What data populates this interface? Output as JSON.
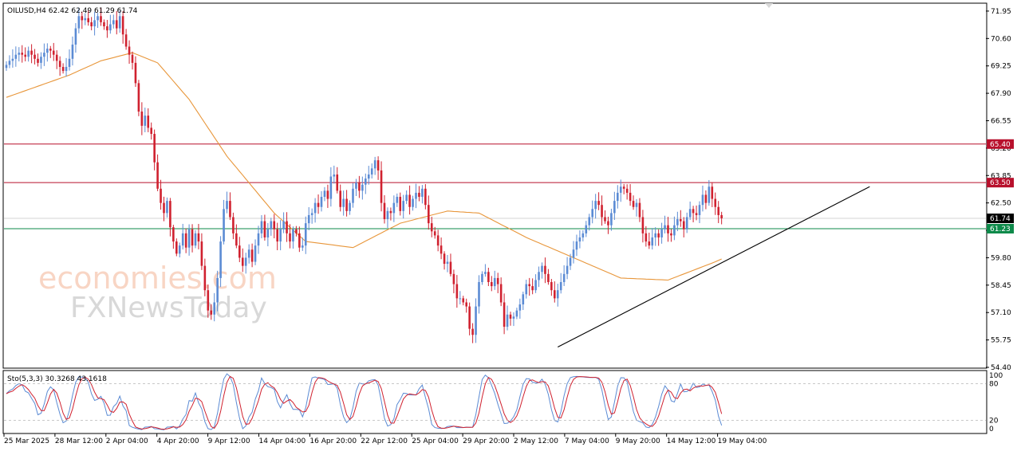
{
  "chart_data": {
    "type": "candlestick",
    "symbol_line": "OILUSD,H4 62.42 62.49 61.29 61.74",
    "price_axis": {
      "ticks": [
        "71.95",
        "70.60",
        "69.25",
        "67.90",
        "66.55",
        "65.20",
        "63.85",
        "62.50",
        "61.15",
        "59.80",
        "58.45",
        "57.10",
        "55.75",
        "54.40"
      ],
      "range": [
        54.4,
        72.3
      ]
    },
    "horizontal_levels": [
      {
        "value": 65.4,
        "label": "65.40",
        "color": "#b8102c"
      },
      {
        "value": 63.5,
        "label": "63.50",
        "color": "#b8102c"
      },
      {
        "value": 61.23,
        "label": "61.23",
        "color": "#0d8a4a"
      },
      {
        "value": 61.74,
        "label": "61.74",
        "color": "#000000"
      }
    ],
    "trendline": {
      "from": {
        "bar": 175,
        "price": 55.4
      },
      "to": {
        "bar": 274,
        "price": 63.3
      }
    },
    "time_axis": {
      "labels": [
        "25 Mar 2025",
        "28 Mar 12:00",
        "2 Apr 04:00",
        "4 Apr 20:00",
        "9 Apr 12:00",
        "14 Apr 04:00",
        "16 Apr 20:00",
        "22 Apr 12:00",
        "25 Apr 04:00",
        "29 Apr 20:00",
        "2 May 12:00",
        "7 May 04:00",
        "9 May 20:00",
        "14 May 12:00",
        "19 May 04:00"
      ]
    },
    "ma_waypoints": [
      [
        0,
        67.7
      ],
      [
        20,
        68.8
      ],
      [
        30,
        69.5
      ],
      [
        40,
        69.9
      ],
      [
        48,
        69.4
      ],
      [
        58,
        67.6
      ],
      [
        70,
        64.8
      ],
      [
        85,
        62.0
      ],
      [
        95,
        60.6
      ],
      [
        110,
        60.3
      ],
      [
        125,
        61.5
      ],
      [
        140,
        62.1
      ],
      [
        150,
        62.0
      ],
      [
        165,
        60.8
      ],
      [
        180,
        59.8
      ],
      [
        195,
        58.8
      ],
      [
        210,
        58.7
      ],
      [
        225,
        59.6
      ],
      [
        235,
        60.3
      ],
      [
        245,
        60.9
      ],
      [
        258,
        61.6
      ]
    ],
    "closes": [
      69.3,
      69.5,
      69.6,
      69.8,
      69.9,
      69.8,
      69.7,
      70.0,
      69.8,
      69.6,
      69.4,
      69.7,
      69.9,
      70.1,
      70.0,
      69.8,
      69.5,
      69.2,
      69.0,
      69.2,
      69.6,
      70.3,
      71.1,
      71.7,
      71.5,
      71.6,
      71.4,
      71.2,
      71.5,
      71.7,
      71.4,
      71.2,
      71.0,
      71.3,
      71.5,
      71.1,
      71.7,
      70.8,
      70.2,
      69.8,
      69.4,
      68.4,
      67.0,
      66.3,
      66.8,
      66.2,
      65.9,
      64.5,
      63.2,
      62.5,
      62.0,
      62.6,
      61.3,
      60.6,
      60.0,
      60.4,
      61.0,
      60.3,
      61.2,
      60.4,
      61.0,
      60.6,
      59.4,
      58.2,
      57.2,
      57.0,
      57.6,
      58.8,
      60.6,
      62.2,
      62.6,
      61.8,
      61.0,
      60.4,
      59.8,
      59.4,
      59.8,
      60.2,
      59.6,
      60.4,
      61.0,
      61.6,
      60.8,
      61.2,
      61.6,
      61.2,
      60.6,
      61.2,
      61.6,
      61.0,
      60.6,
      61.2,
      61.0,
      60.3,
      60.4,
      61.5,
      61.9,
      62.0,
      62.5,
      62.3,
      62.8,
      63.1,
      62.7,
      63.8,
      63.9,
      63.1,
      62.3,
      62.7,
      62.1,
      62.5,
      63.2,
      63.5,
      63.1,
      63.4,
      63.7,
      63.9,
      64.2,
      64.6,
      64.1,
      62.5,
      61.7,
      62.1,
      62.0,
      62.5,
      62.8,
      62.1,
      62.6,
      62.9,
      62.3,
      62.7,
      63.0,
      62.8,
      63.2,
      62.4,
      61.5,
      61.1,
      60.9,
      60.4,
      60.0,
      59.5,
      59.6,
      59.0,
      58.5,
      57.8,
      57.8,
      57.6,
      57.4,
      56.3,
      56.0,
      57.4,
      58.6,
      59.0,
      59.1,
      58.6,
      58.4,
      58.8,
      58.5,
      57.6,
      56.4,
      57.0,
      56.8,
      56.9,
      57.2,
      57.5,
      58.0,
      58.5,
      58.4,
      58.2,
      58.7,
      59.1,
      59.4,
      59.0,
      58.6,
      58.2,
      57.8,
      58.2,
      58.6,
      59.0,
      59.4,
      59.8,
      60.2,
      60.6,
      60.8,
      61.0,
      61.4,
      61.8,
      62.2,
      62.6,
      62.4,
      61.8,
      61.6,
      61.4,
      62.0,
      62.6,
      63.0,
      63.3,
      63.2,
      63.0,
      62.6,
      62.3,
      62.5,
      61.8,
      61.0,
      60.6,
      60.4,
      60.8,
      61.0,
      60.8,
      61.2,
      61.4,
      61.0,
      60.9,
      61.4,
      61.7,
      61.6,
      61.2,
      61.8,
      62.2,
      62.0,
      61.9,
      62.4,
      62.9,
      62.5,
      63.3,
      62.7,
      62.3,
      61.9,
      61.74
    ],
    "stochastic": {
      "label": "Sto(5,3,3) 30.3268 43.1618",
      "levels": [
        "100",
        "80",
        "20",
        "0"
      ],
      "range": [
        0,
        100
      ],
      "k_line_color": "#5b8bd4",
      "d_line_color": "#d0212f"
    },
    "watermark": {
      "line1": "economies.com",
      "line2": "FXNewsToday"
    },
    "colors": {
      "bull": "#5b8bd4",
      "bear": "#d0212f",
      "ma": "#e8963a",
      "grid": "#cfcfcf"
    }
  }
}
